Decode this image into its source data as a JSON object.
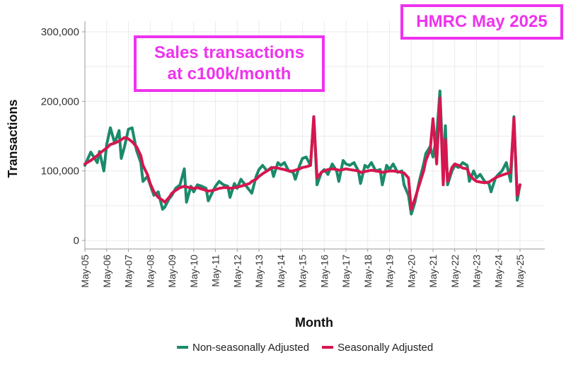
{
  "annotations": {
    "title": "HMRC May 2025",
    "note_line1": "Sales transactions",
    "note_line2": "at c100k/month"
  },
  "legend": {
    "nsa_label": "Non-seasonally Adjusted",
    "sa_label": "Seasonally Adjusted"
  },
  "colors": {
    "nsa": "#1b8a6b",
    "sa": "#d6164f",
    "annotation": "#ee33ee",
    "grid": "#ebebeb",
    "axis": "#999999"
  },
  "chart_data": {
    "type": "line",
    "xlabel": "Month",
    "ylabel": "Transactions",
    "ylim": [
      0,
      300000
    ],
    "y_ticks": [
      "0",
      "100,000",
      "200,000",
      "300,000"
    ],
    "y_tick_values": [
      0,
      100000,
      200000,
      300000
    ],
    "x_ticks": [
      "May-05",
      "May-06",
      "May-07",
      "May-08",
      "May-09",
      "May-10",
      "May-11",
      "May-12",
      "May-13",
      "May-14",
      "May-15",
      "May-16",
      "May-17",
      "May-18",
      "May-19",
      "May-20",
      "May-21",
      "May-22",
      "May-23",
      "May-24",
      "May-25"
    ],
    "x_start_year": 2005.33,
    "x_end_year": 2025.33,
    "grid": true,
    "legend_position": "bottom",
    "series": [
      {
        "name": "Non-seasonally Adjusted",
        "points": [
          [
            2005.33,
            108000
          ],
          [
            2005.6,
            127000
          ],
          [
            2005.9,
            112000
          ],
          [
            2006.0,
            128000
          ],
          [
            2006.2,
            100000
          ],
          [
            2006.33,
            138000
          ],
          [
            2006.5,
            162000
          ],
          [
            2006.7,
            140000
          ],
          [
            2006.9,
            158000
          ],
          [
            2007.0,
            118000
          ],
          [
            2007.15,
            135000
          ],
          [
            2007.33,
            160000
          ],
          [
            2007.5,
            162000
          ],
          [
            2007.7,
            130000
          ],
          [
            2007.9,
            112000
          ],
          [
            2008.0,
            85000
          ],
          [
            2008.2,
            92000
          ],
          [
            2008.33,
            80000
          ],
          [
            2008.5,
            65000
          ],
          [
            2008.7,
            70000
          ],
          [
            2008.9,
            45000
          ],
          [
            2009.0,
            48000
          ],
          [
            2009.2,
            60000
          ],
          [
            2009.33,
            65000
          ],
          [
            2009.5,
            75000
          ],
          [
            2009.7,
            80000
          ],
          [
            2009.9,
            103000
          ],
          [
            2010.0,
            55000
          ],
          [
            2010.2,
            78000
          ],
          [
            2010.33,
            70000
          ],
          [
            2010.5,
            80000
          ],
          [
            2010.7,
            78000
          ],
          [
            2010.9,
            75000
          ],
          [
            2011.0,
            57000
          ],
          [
            2011.2,
            70000
          ],
          [
            2011.33,
            78000
          ],
          [
            2011.5,
            85000
          ],
          [
            2011.7,
            80000
          ],
          [
            2011.9,
            78000
          ],
          [
            2012.0,
            62000
          ],
          [
            2012.2,
            82000
          ],
          [
            2012.33,
            75000
          ],
          [
            2012.5,
            88000
          ],
          [
            2012.7,
            80000
          ],
          [
            2012.9,
            72000
          ],
          [
            2013.0,
            68000
          ],
          [
            2013.2,
            92000
          ],
          [
            2013.33,
            102000
          ],
          [
            2013.5,
            108000
          ],
          [
            2013.7,
            100000
          ],
          [
            2013.9,
            105000
          ],
          [
            2014.0,
            92000
          ],
          [
            2014.2,
            112000
          ],
          [
            2014.33,
            108000
          ],
          [
            2014.5,
            112000
          ],
          [
            2014.7,
            100000
          ],
          [
            2014.9,
            98000
          ],
          [
            2015.0,
            88000
          ],
          [
            2015.2,
            108000
          ],
          [
            2015.33,
            118000
          ],
          [
            2015.5,
            120000
          ],
          [
            2015.7,
            108000
          ],
          [
            2015.85,
            178000
          ],
          [
            2016.0,
            80000
          ],
          [
            2016.2,
            98000
          ],
          [
            2016.33,
            102000
          ],
          [
            2016.5,
            95000
          ],
          [
            2016.7,
            110000
          ],
          [
            2016.9,
            100000
          ],
          [
            2017.0,
            85000
          ],
          [
            2017.2,
            115000
          ],
          [
            2017.33,
            110000
          ],
          [
            2017.5,
            108000
          ],
          [
            2017.7,
            112000
          ],
          [
            2017.9,
            100000
          ],
          [
            2018.0,
            82000
          ],
          [
            2018.2,
            108000
          ],
          [
            2018.33,
            105000
          ],
          [
            2018.5,
            112000
          ],
          [
            2018.7,
            100000
          ],
          [
            2018.9,
            102000
          ],
          [
            2019.0,
            80000
          ],
          [
            2019.2,
            108000
          ],
          [
            2019.33,
            102000
          ],
          [
            2019.5,
            110000
          ],
          [
            2019.7,
            98000
          ],
          [
            2019.9,
            100000
          ],
          [
            2020.0,
            80000
          ],
          [
            2020.2,
            65000
          ],
          [
            2020.33,
            38000
          ],
          [
            2020.5,
            55000
          ],
          [
            2020.7,
            85000
          ],
          [
            2020.9,
            110000
          ],
          [
            2021.0,
            125000
          ],
          [
            2021.2,
            135000
          ],
          [
            2021.33,
            120000
          ],
          [
            2021.5,
            150000
          ],
          [
            2021.65,
            215000
          ],
          [
            2021.8,
            100000
          ],
          [
            2021.9,
            165000
          ],
          [
            2022.0,
            80000
          ],
          [
            2022.2,
            100000
          ],
          [
            2022.33,
            108000
          ],
          [
            2022.5,
            105000
          ],
          [
            2022.7,
            112000
          ],
          [
            2022.9,
            108000
          ],
          [
            2023.0,
            85000
          ],
          [
            2023.2,
            100000
          ],
          [
            2023.33,
            90000
          ],
          [
            2023.5,
            95000
          ],
          [
            2023.7,
            85000
          ],
          [
            2023.9,
            82000
          ],
          [
            2024.0,
            70000
          ],
          [
            2024.2,
            90000
          ],
          [
            2024.33,
            95000
          ],
          [
            2024.5,
            100000
          ],
          [
            2024.7,
            112000
          ],
          [
            2024.9,
            85000
          ],
          [
            2025.05,
            178000
          ],
          [
            2025.2,
            58000
          ],
          [
            2025.33,
            80000
          ]
        ]
      },
      {
        "name": "Seasonally Adjusted",
        "points": [
          [
            2005.33,
            110000
          ],
          [
            2005.6,
            115000
          ],
          [
            2005.9,
            122000
          ],
          [
            2006.0,
            125000
          ],
          [
            2006.2,
            130000
          ],
          [
            2006.33,
            133000
          ],
          [
            2006.5,
            138000
          ],
          [
            2006.7,
            140000
          ],
          [
            2006.9,
            143000
          ],
          [
            2007.0,
            145000
          ],
          [
            2007.15,
            148000
          ],
          [
            2007.33,
            146000
          ],
          [
            2007.5,
            142000
          ],
          [
            2007.7,
            135000
          ],
          [
            2007.9,
            122000
          ],
          [
            2008.0,
            108000
          ],
          [
            2008.2,
            95000
          ],
          [
            2008.33,
            82000
          ],
          [
            2008.5,
            70000
          ],
          [
            2008.7,
            62000
          ],
          [
            2008.9,
            58000
          ],
          [
            2009.0,
            55000
          ],
          [
            2009.2,
            62000
          ],
          [
            2009.33,
            68000
          ],
          [
            2009.5,
            72000
          ],
          [
            2009.7,
            76000
          ],
          [
            2009.9,
            78000
          ],
          [
            2010.0,
            77000
          ],
          [
            2010.2,
            76000
          ],
          [
            2010.33,
            75000
          ],
          [
            2010.5,
            76000
          ],
          [
            2010.7,
            74000
          ],
          [
            2010.9,
            72000
          ],
          [
            2011.0,
            71000
          ],
          [
            2011.2,
            72000
          ],
          [
            2011.33,
            73000
          ],
          [
            2011.5,
            75000
          ],
          [
            2011.7,
            76000
          ],
          [
            2011.9,
            76000
          ],
          [
            2012.0,
            75000
          ],
          [
            2012.2,
            76000
          ],
          [
            2012.33,
            77000
          ],
          [
            2012.5,
            78000
          ],
          [
            2012.7,
            80000
          ],
          [
            2012.9,
            82000
          ],
          [
            2013.0,
            85000
          ],
          [
            2013.2,
            88000
          ],
          [
            2013.33,
            92000
          ],
          [
            2013.5,
            96000
          ],
          [
            2013.7,
            100000
          ],
          [
            2013.9,
            104000
          ],
          [
            2014.0,
            105000
          ],
          [
            2014.2,
            104000
          ],
          [
            2014.33,
            103000
          ],
          [
            2014.5,
            102000
          ],
          [
            2014.7,
            100000
          ],
          [
            2014.9,
            100000
          ],
          [
            2015.0,
            101000
          ],
          [
            2015.2,
            103000
          ],
          [
            2015.33,
            105000
          ],
          [
            2015.5,
            106000
          ],
          [
            2015.7,
            108000
          ],
          [
            2015.85,
            178000
          ],
          [
            2016.0,
            90000
          ],
          [
            2016.2,
            98000
          ],
          [
            2016.33,
            100000
          ],
          [
            2016.5,
            102000
          ],
          [
            2016.7,
            103000
          ],
          [
            2016.9,
            102000
          ],
          [
            2017.0,
            101000
          ],
          [
            2017.2,
            102000
          ],
          [
            2017.33,
            103000
          ],
          [
            2017.5,
            102000
          ],
          [
            2017.7,
            101000
          ],
          [
            2017.9,
            100000
          ],
          [
            2018.0,
            98000
          ],
          [
            2018.2,
            99000
          ],
          [
            2018.33,
            100000
          ],
          [
            2018.5,
            101000
          ],
          [
            2018.7,
            100000
          ],
          [
            2018.9,
            99000
          ],
          [
            2019.0,
            98000
          ],
          [
            2019.2,
            99000
          ],
          [
            2019.33,
            100000
          ],
          [
            2019.5,
            100000
          ],
          [
            2019.7,
            99000
          ],
          [
            2019.9,
            98000
          ],
          [
            2020.0,
            97000
          ],
          [
            2020.2,
            90000
          ],
          [
            2020.33,
            45000
          ],
          [
            2020.5,
            60000
          ],
          [
            2020.7,
            80000
          ],
          [
            2020.9,
            100000
          ],
          [
            2021.0,
            115000
          ],
          [
            2021.2,
            130000
          ],
          [
            2021.33,
            175000
          ],
          [
            2021.5,
            110000
          ],
          [
            2021.65,
            205000
          ],
          [
            2021.8,
            80000
          ],
          [
            2021.9,
            145000
          ],
          [
            2022.0,
            85000
          ],
          [
            2022.2,
            105000
          ],
          [
            2022.33,
            110000
          ],
          [
            2022.5,
            108000
          ],
          [
            2022.7,
            104000
          ],
          [
            2022.9,
            103000
          ],
          [
            2023.0,
            95000
          ],
          [
            2023.2,
            88000
          ],
          [
            2023.33,
            85000
          ],
          [
            2023.5,
            84000
          ],
          [
            2023.7,
            83000
          ],
          [
            2023.9,
            84000
          ],
          [
            2024.0,
            86000
          ],
          [
            2024.2,
            90000
          ],
          [
            2024.33,
            92000
          ],
          [
            2024.5,
            94000
          ],
          [
            2024.7,
            96000
          ],
          [
            2024.9,
            98000
          ],
          [
            2025.05,
            176000
          ],
          [
            2025.2,
            65000
          ],
          [
            2025.33,
            80000
          ]
        ]
      }
    ]
  }
}
